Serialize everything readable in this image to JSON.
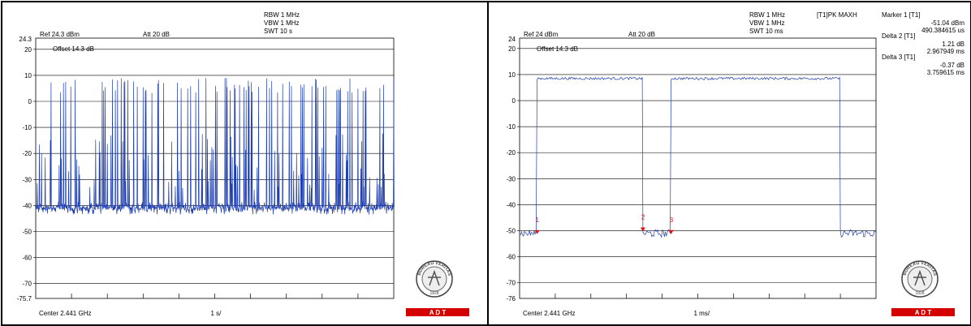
{
  "colors": {
    "trace": "#1f3fb0",
    "grid": "#000000",
    "marker": "#e01010",
    "logo_band": "#d40000"
  },
  "chart_data": [
    {
      "type": "line",
      "title": "",
      "header": {
        "rbw": "RBW 1 MHz",
        "vbw": "VBW 1 MHz",
        "swt": "SWT 10 s",
        "trace_mode": ""
      },
      "ref_level": "Ref 24.3 dBm",
      "attenuation": "Att  20 dB",
      "offset": "Offset 14.3 dB",
      "center": "Center 2.441 GHz",
      "span_div": "1 s/",
      "ylim": [
        -75.7,
        24.3
      ],
      "y_ticks": [
        20,
        10,
        0,
        -10,
        -20,
        -30,
        -40,
        -50,
        -60,
        -70
      ],
      "y_top_label": "24.3",
      "y_bottom_label": "-75.7",
      "x_divisions": 10,
      "grid": true,
      "noise_floor_dbm": -41,
      "burst_peak_dbm": 9,
      "description": "frequency hopping channel occupancy over 10 s sweep",
      "markers": [],
      "marker_readout": []
    },
    {
      "type": "line",
      "title": "",
      "header": {
        "rbw": "RBW 1 MHz",
        "vbw": "VBW 1 MHz",
        "swt": "SWT 10 ms",
        "trace_mode": "[T1]PK MAXH"
      },
      "ref_level": "Ref 24 dBm",
      "attenuation": "Att  20 dB",
      "offset": "Offset 14.3 dB",
      "center": "Center 2.441 GHz",
      "span_div": "1 ms/",
      "ylim": [
        -76,
        24
      ],
      "y_ticks": [
        20,
        10,
        0,
        -10,
        -20,
        -30,
        -40,
        -50,
        -60,
        -70
      ],
      "y_top_label": "24",
      "y_bottom_label": "-76",
      "x_divisions": 10,
      "grid": true,
      "x_unit": "ms",
      "segments": [
        {
          "x": [
            0.0,
            0.49
          ],
          "level": -51
        },
        {
          "x": [
            0.49,
            3.46
          ],
          "level": 8.5
        },
        {
          "x": [
            3.46,
            4.25
          ],
          "level": -51
        },
        {
          "x": [
            4.25,
            9.0
          ],
          "level": 8.5
        },
        {
          "x": [
            9.0,
            10.0
          ],
          "level": -51
        }
      ],
      "markers": [
        {
          "label": "1",
          "x": 0.49,
          "y": -51
        },
        {
          "label": "2",
          "x": 3.46,
          "y": -50
        },
        {
          "label": "3",
          "x": 4.25,
          "y": -51
        }
      ],
      "marker_readout": [
        {
          "name": "Marker 1 [T1]",
          "val1": "-51.04 dBm",
          "val2": "490.384615 us"
        },
        {
          "name": "Delta 2 [T1]",
          "val1": "1.21 dB",
          "val2": "2.967949 ms"
        },
        {
          "name": "Delta 3 [T1]",
          "val1": "-0.37 dB",
          "val2": "3.759615 ms"
        }
      ]
    }
  ],
  "logo": {
    "seal_text": "BUREAU VERITAS",
    "year": "1828",
    "band_text": "A   D   T"
  }
}
